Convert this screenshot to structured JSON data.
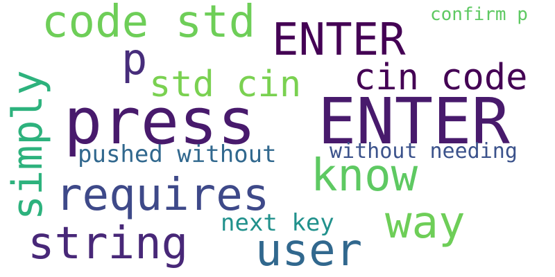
{
  "words": [
    {
      "key": "press",
      "text": "press",
      "color": "#481a6c"
    },
    {
      "key": "enter1",
      "text": "ENTER",
      "color": "#481a6c"
    },
    {
      "key": "enter2",
      "text": "ENTER",
      "color": "#440154"
    },
    {
      "key": "code_std",
      "text": "code std",
      "color": "#6ece58"
    },
    {
      "key": "p",
      "text": "p",
      "color": "#472d7b"
    },
    {
      "key": "std_cin",
      "text": "std cin",
      "color": "#7ad151"
    },
    {
      "key": "cin_code",
      "text": "cin code",
      "color": "#440154"
    },
    {
      "key": "confirm_p",
      "text": "confirm p",
      "color": "#5ec962"
    },
    {
      "key": "simply",
      "text": "simply",
      "color": "#2db27d"
    },
    {
      "key": "requires",
      "text": "requires",
      "color": "#3e4989"
    },
    {
      "key": "know",
      "text": "know",
      "color": "#5ec962"
    },
    {
      "key": "pushed_without",
      "text": "pushed without",
      "color": "#31688e"
    },
    {
      "key": "without_needing",
      "text": "without needing",
      "color": "#3b528b"
    },
    {
      "key": "way",
      "text": "way",
      "color": "#6ece58"
    },
    {
      "key": "next_key",
      "text": "next key",
      "color": "#21918c"
    },
    {
      "key": "string",
      "text": "string",
      "color": "#482878"
    },
    {
      "key": "user",
      "text": "user",
      "color": "#31688e"
    }
  ]
}
